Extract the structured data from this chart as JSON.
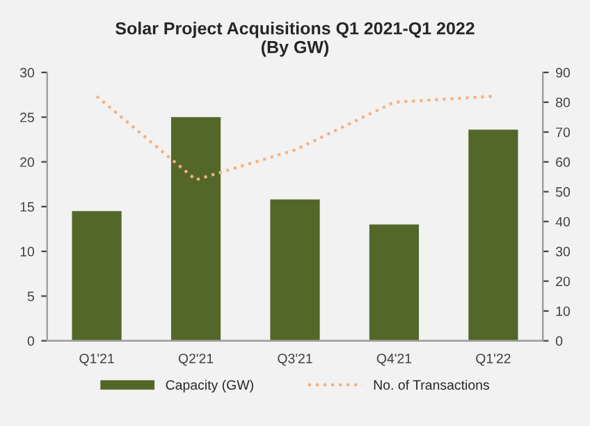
{
  "chart_data": {
    "type": "bar",
    "title": "Solar Project Acquisitions Q1 2021-Q1 2022\n(By GW)",
    "categories": [
      "Q1'21",
      "Q2'21",
      "Q3'21",
      "Q4'21",
      "Q1'22"
    ],
    "series": [
      {
        "name": "Capacity (GW)",
        "color": "#536729",
        "values": [
          14.5,
          25.0,
          15.8,
          13.0,
          23.6
        ]
      },
      {
        "name": "No. of Transactions",
        "type": "line",
        "axis": "y2",
        "color": "#f4b183",
        "line_style": "dotted",
        "values": [
          82,
          54,
          64,
          80,
          82
        ]
      }
    ],
    "ylim": [
      0,
      30
    ],
    "yticks": [
      0,
      5,
      10,
      15,
      20,
      25,
      30
    ],
    "y2lim": [
      0,
      90
    ],
    "y2ticks": [
      0,
      10,
      20,
      30,
      40,
      50,
      60,
      70,
      80,
      90
    ],
    "grid": false,
    "legend": "bottom"
  }
}
